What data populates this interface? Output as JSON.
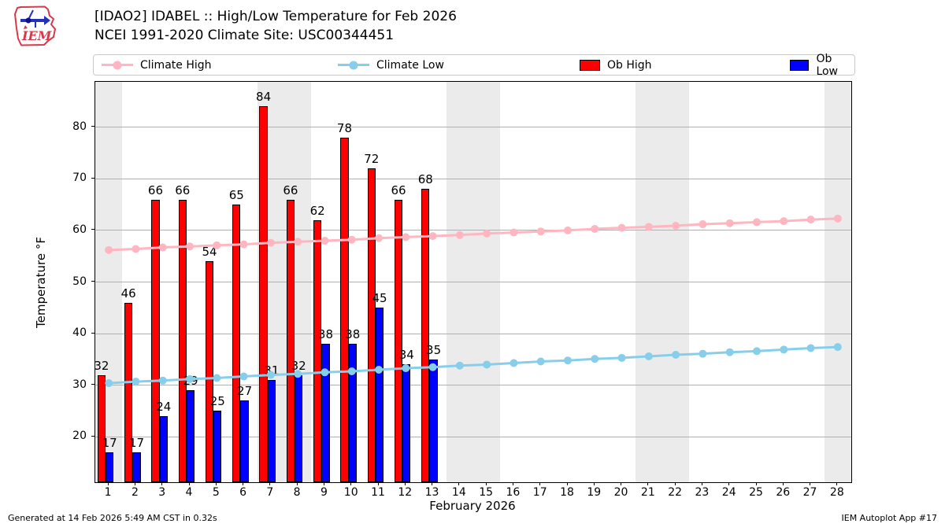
{
  "header": {
    "title_line1": "[IDAO2] IDABEL :: High/Low Temperature for Feb 2026",
    "title_line2": "NCEI 1991-2020 Climate Site: USC00344451",
    "logo_text": "IEM"
  },
  "legend": [
    {
      "label": "Climate High",
      "type": "line",
      "color": "#ffb6c1"
    },
    {
      "label": "Climate Low",
      "type": "line",
      "color": "#87ceeb"
    },
    {
      "label": "Ob High",
      "type": "patch",
      "color": "#ff0000"
    },
    {
      "label": "Ob Low",
      "type": "patch",
      "color": "#0000ff"
    }
  ],
  "footer": {
    "left": "Generated at 14 Feb 2026 5:49 AM CST in 0.32s",
    "right": "IEM Autoplot App #17"
  },
  "chart_data": {
    "type": "bar",
    "title": "[IDAO2] IDABEL :: High/Low Temperature for Feb 2026",
    "subtitle": "NCEI 1991-2020 Climate Site: USC00344451",
    "xlabel": "February 2026",
    "ylabel": "Temperature °F",
    "x": [
      1,
      2,
      3,
      4,
      5,
      6,
      7,
      8,
      9,
      10,
      11,
      12,
      13,
      14,
      15,
      16,
      17,
      18,
      19,
      20,
      21,
      22,
      23,
      24,
      25,
      26,
      27,
      28
    ],
    "series": [
      {
        "name": "Ob High",
        "type": "bar",
        "color": "#ff0000",
        "values": [
          32,
          46,
          66,
          66,
          54,
          65,
          84,
          66,
          62,
          78,
          72,
          66,
          68
        ]
      },
      {
        "name": "Ob Low",
        "type": "bar",
        "color": "#0000ff",
        "values": [
          17,
          17,
          24,
          29,
          25,
          27,
          31,
          32,
          38,
          38,
          45,
          34,
          35
        ]
      },
      {
        "name": "Climate High",
        "type": "line",
        "color": "#ffb6c1",
        "values": [
          56.2,
          56.4,
          56.7,
          56.9,
          57.1,
          57.3,
          57.6,
          57.8,
          58.0,
          58.2,
          58.5,
          58.7,
          58.9,
          59.1,
          59.4,
          59.6,
          59.8,
          60.0,
          60.3,
          60.5,
          60.7,
          60.9,
          61.2,
          61.4,
          61.6,
          61.8,
          62.1,
          62.3
        ]
      },
      {
        "name": "Climate Low",
        "type": "line",
        "color": "#87ceeb",
        "values": [
          30.4,
          30.7,
          30.9,
          31.2,
          31.4,
          31.7,
          32.0,
          32.2,
          32.5,
          32.7,
          33.0,
          33.3,
          33.5,
          33.8,
          34.0,
          34.3,
          34.6,
          34.8,
          35.1,
          35.3,
          35.6,
          35.9,
          36.1,
          36.4,
          36.6,
          36.9,
          37.2,
          37.4
        ]
      }
    ],
    "yticks": [
      20,
      30,
      40,
      50,
      60,
      70,
      80
    ],
    "ylim": [
      11.2,
      88.8
    ],
    "xlim": [
      0.5,
      28.5
    ],
    "weekend_shaded_days": [
      1,
      7,
      8,
      14,
      15,
      21,
      22,
      28
    ],
    "shade_color": "#ebebeb",
    "grid": "horizontal",
    "gridcolor": "#b0b0b0",
    "legend_position": "top"
  }
}
